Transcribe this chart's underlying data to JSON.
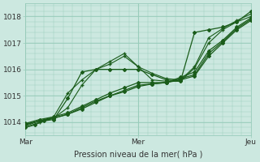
{
  "title": "",
  "xlabel": "Pression niveau de la mer( hPa )",
  "bg_color": "#cce8e0",
  "grid_color": "#99ccbb",
  "line_color": "#1a5c1a",
  "ylim": [
    1013.5,
    1018.5
  ],
  "xlim": [
    0,
    96
  ],
  "xtick_positions": [
    0,
    48,
    96
  ],
  "xtick_labels": [
    "Mar",
    "Mer",
    "Jeu"
  ],
  "ytick_positions": [
    1014,
    1015,
    1016,
    1017,
    1018
  ],
  "ytick_labels": [
    "1014",
    "1015",
    "1016",
    "1017",
    "1018"
  ],
  "series": [
    {
      "x": [
        0,
        4,
        8,
        12,
        18,
        24,
        30,
        36,
        42,
        48,
        54,
        60,
        66,
        72,
        78,
        84,
        90,
        96
      ],
      "y": [
        1013.8,
        1013.9,
        1014.05,
        1014.1,
        1014.9,
        1015.9,
        1016.0,
        1016.0,
        1016.0,
        1016.0,
        1015.8,
        1015.6,
        1015.55,
        1017.4,
        1017.5,
        1017.6,
        1017.8,
        1018.2
      ],
      "marker": "D",
      "ms": 2.0,
      "lw": 0.9
    },
    {
      "x": [
        0,
        6,
        12,
        18,
        24,
        30,
        36,
        42,
        48,
        54,
        60,
        66,
        72,
        78,
        84,
        90,
        96
      ],
      "y": [
        1013.8,
        1014.0,
        1014.15,
        1014.55,
        1015.4,
        1016.0,
        1016.2,
        1016.5,
        1016.1,
        1015.85,
        1015.65,
        1015.6,
        1016.1,
        1017.2,
        1017.55,
        1017.85,
        1018.1
      ],
      "marker": "+",
      "ms": 3.5,
      "lw": 0.8
    },
    {
      "x": [
        0,
        6,
        12,
        18,
        24,
        30,
        36,
        42,
        48,
        54,
        60,
        66,
        72,
        78,
        84,
        90,
        96
      ],
      "y": [
        1013.85,
        1014.05,
        1014.2,
        1015.1,
        1015.6,
        1016.0,
        1016.3,
        1016.6,
        1016.1,
        1015.6,
        1015.55,
        1015.55,
        1016.05,
        1017.0,
        1017.5,
        1017.8,
        1018.0
      ],
      "marker": "+",
      "ms": 3.5,
      "lw": 0.8
    },
    {
      "x": [
        0,
        6,
        12,
        18,
        24,
        30,
        36,
        42,
        48,
        54,
        60,
        66,
        72,
        78,
        84,
        90,
        96
      ],
      "y": [
        1013.9,
        1014.05,
        1014.15,
        1014.3,
        1014.5,
        1014.75,
        1015.0,
        1015.15,
        1015.35,
        1015.45,
        1015.5,
        1015.6,
        1015.75,
        1016.5,
        1017.0,
        1017.5,
        1017.85
      ],
      "marker": "D",
      "ms": 2.0,
      "lw": 0.9
    },
    {
      "x": [
        0,
        6,
        12,
        18,
        24,
        30,
        36,
        42,
        48,
        54,
        60,
        66,
        72,
        78,
        84,
        90,
        96
      ],
      "y": [
        1013.92,
        1014.05,
        1014.15,
        1014.3,
        1014.55,
        1014.8,
        1015.0,
        1015.2,
        1015.4,
        1015.45,
        1015.5,
        1015.65,
        1015.8,
        1016.6,
        1017.05,
        1017.55,
        1017.9
      ],
      "marker": "D",
      "ms": 2.0,
      "lw": 0.9
    },
    {
      "x": [
        0,
        6,
        12,
        18,
        24,
        30,
        36,
        42,
        48,
        54,
        60,
        66,
        72,
        78,
        84,
        90,
        96
      ],
      "y": [
        1013.95,
        1014.1,
        1014.2,
        1014.35,
        1014.6,
        1014.85,
        1015.1,
        1015.3,
        1015.5,
        1015.5,
        1015.5,
        1015.7,
        1015.9,
        1016.7,
        1017.1,
        1017.6,
        1017.95
      ],
      "marker": "D",
      "ms": 2.0,
      "lw": 0.9
    }
  ]
}
